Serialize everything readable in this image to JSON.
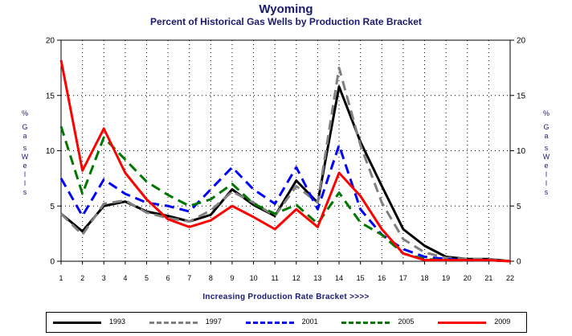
{
  "chart_data": {
    "type": "line",
    "title": "Wyoming",
    "subtitle": "Percent of Historical Gas Wells by Production Rate Bracket",
    "xlabel": "Increasing Production Rate Bracket >>>>",
    "ylabel": "% Gas Wells",
    "x": [
      1,
      2,
      3,
      4,
      5,
      6,
      7,
      8,
      9,
      10,
      11,
      12,
      13,
      14,
      15,
      16,
      17,
      18,
      19,
      20,
      21,
      22
    ],
    "ylim": [
      0,
      20
    ],
    "yticks": [
      0,
      5,
      10,
      15,
      20
    ],
    "grid": "dotted",
    "legend_position": "bottom",
    "series": [
      {
        "name": "1993",
        "color": "#000000",
        "dash": "solid",
        "values": [
          4.3,
          2.7,
          5.0,
          5.4,
          4.5,
          4.1,
          3.6,
          4.2,
          6.5,
          5.1,
          4.1,
          7.3,
          5.3,
          15.8,
          10.8,
          6.8,
          2.9,
          1.4,
          0.4,
          0.2,
          0.2,
          0.0
        ]
      },
      {
        "name": "1997",
        "color": "#808080",
        "dash": "dashed",
        "values": [
          4.3,
          2.4,
          5.2,
          5.5,
          4.4,
          3.9,
          3.6,
          4.6,
          6.3,
          5.3,
          4.1,
          6.8,
          5.3,
          17.5,
          10.5,
          5.3,
          2.0,
          0.8,
          0.3,
          0.2,
          0.2,
          0.0
        ]
      },
      {
        "name": "2001",
        "color": "#0000ff",
        "dash": "dashed",
        "values": [
          7.5,
          4.1,
          7.4,
          6.1,
          5.3,
          5.0,
          4.5,
          6.5,
          8.5,
          6.5,
          5.2,
          8.5,
          4.7,
          10.5,
          4.7,
          2.4,
          1.1,
          0.4,
          0.2,
          0.1,
          0.1,
          0.0
        ]
      },
      {
        "name": "2005",
        "color": "#007700",
        "dash": "dashed",
        "values": [
          12.2,
          6.1,
          11.2,
          9.2,
          7.2,
          6.0,
          5.0,
          5.6,
          7.0,
          5.2,
          4.3,
          5.1,
          3.4,
          6.2,
          3.5,
          2.4,
          0.7,
          0.2,
          0.1,
          0.1,
          0.1,
          0.0
        ]
      },
      {
        "name": "2009",
        "color": "#ff0000",
        "dash": "solid",
        "values": [
          18.2,
          8.2,
          12.0,
          8.0,
          5.6,
          3.8,
          3.1,
          3.7,
          5.0,
          4.0,
          2.9,
          4.7,
          3.1,
          8.0,
          5.9,
          2.9,
          0.7,
          0.1,
          0.1,
          0.1,
          0.1,
          0.0
        ]
      }
    ]
  }
}
